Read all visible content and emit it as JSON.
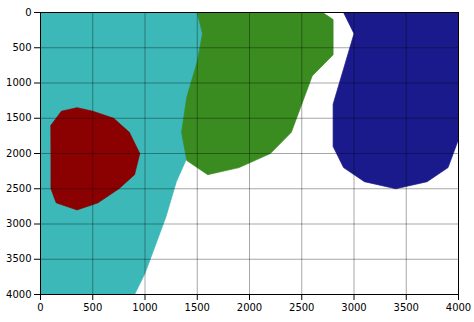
{
  "chart_data": {
    "type": "polygon",
    "xlim": [
      0,
      4000
    ],
    "ylim": [
      4000,
      0
    ],
    "xticks": [
      0,
      500,
      1000,
      1500,
      2000,
      2500,
      3000,
      3500,
      4000
    ],
    "yticks": [
      0,
      500,
      1000,
      1500,
      2000,
      2500,
      3000,
      3500,
      4000
    ],
    "grid": true,
    "series": [
      {
        "color": "#3db8b8",
        "x": [
          100,
          1600,
          1700,
          1750,
          1700,
          1600,
          1450,
          1300,
          1200,
          1100,
          1000,
          900,
          0,
          0
        ],
        "values": [
          0,
          0,
          200,
          600,
          1100,
          1500,
          1900,
          2400,
          2900,
          3300,
          3700,
          4000,
          4000,
          0
        ]
      },
      {
        "color": "#3a8c20",
        "x": [
          1300,
          2700,
          2800,
          2800,
          2600,
          2500,
          2400,
          2200,
          1900,
          1600,
          1400,
          1350,
          1400,
          1500,
          1550,
          1500
        ],
        "values": [
          0,
          0,
          100,
          600,
          900,
          1300,
          1700,
          2000,
          2200,
          2300,
          2100,
          1700,
          1200,
          700,
          300,
          0
        ]
      },
      {
        "color": "#1a1a8c",
        "x": [
          2700,
          4000,
          4000,
          3900,
          3700,
          3400,
          3100,
          2900,
          2800,
          2800,
          2900,
          3000,
          2900
        ],
        "values": [
          0,
          0,
          1800,
          2200,
          2400,
          2500,
          2400,
          2200,
          1900,
          1300,
          800,
          300,
          0
        ]
      },
      {
        "color": "#8b0000",
        "x": [
          100,
          200,
          350,
          500,
          700,
          850,
          950,
          900,
          750,
          550,
          350,
          150,
          100,
          100
        ],
        "values": [
          1600,
          1400,
          1350,
          1400,
          1500,
          1700,
          2000,
          2300,
          2500,
          2700,
          2800,
          2700,
          2500,
          2100
        ]
      }
    ]
  }
}
